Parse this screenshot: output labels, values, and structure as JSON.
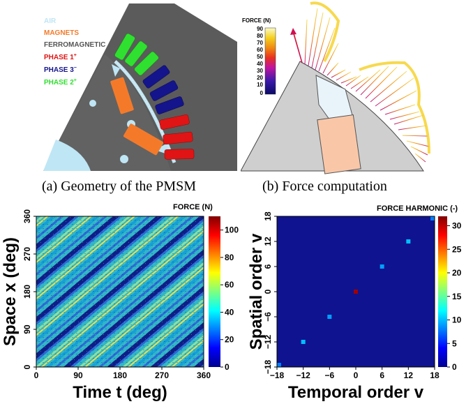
{
  "panel_a": {
    "caption": "(a) Geometry of the PMSM",
    "legend": [
      {
        "label": "AIR",
        "color": "#bfe6f5"
      },
      {
        "label": "MAGNETS",
        "color": "#f47a2a"
      },
      {
        "label": "FERROMAGNETIC",
        "color": "#555555"
      },
      {
        "label": "PHASE 1",
        "sup": "+",
        "color": "#e01414"
      },
      {
        "label": "PHASE 3",
        "sup": "−",
        "color": "#14148c"
      },
      {
        "label": "PHASE 2",
        "sup": "+",
        "color": "#30e030"
      }
    ]
  },
  "panel_b": {
    "caption": "(b) Force computation",
    "colorbar_title": "FORCE (N)",
    "colorbar_ticks": [
      "90",
      "80",
      "70",
      "60",
      "50",
      "40",
      "30",
      "20",
      "10",
      "0"
    ]
  },
  "chart_data": [
    {
      "type": "heatmap",
      "title": "FORCE (N)",
      "xlabel": "Time t (deg)",
      "ylabel": "Space x (deg)",
      "xlim": [
        0,
        360
      ],
      "ylim": [
        0,
        360
      ],
      "x_ticks": [
        "0",
        "90",
        "180",
        "270",
        "360"
      ],
      "y_ticks": [
        "0",
        "90",
        "180",
        "270",
        "360"
      ],
      "colorbar_ticks": [
        "100",
        "80",
        "60",
        "40",
        "20",
        "0"
      ],
      "colorbar_range": [
        0,
        110
      ]
    },
    {
      "type": "heatmap",
      "title": "FORCE HARMONIC (-)",
      "xlabel": "Temporal order v",
      "ylabel": "Spatial order v",
      "xlim": [
        -18,
        18
      ],
      "ylim": [
        -18,
        18
      ],
      "x_ticks": [
        "−18",
        "−12",
        "−6",
        "0",
        "6",
        "12",
        "18"
      ],
      "y_ticks": [
        "−18",
        "−12",
        "−6",
        "0",
        "6",
        "12",
        "18"
      ],
      "colorbar_ticks": [
        "30",
        "25",
        "20",
        "15",
        "10",
        "5",
        "0"
      ],
      "colorbar_range": [
        0,
        32
      ],
      "cells": [
        {
          "x": 0,
          "y": 0,
          "value": 31
        },
        {
          "x": 6,
          "y": 6,
          "value": 9
        },
        {
          "x": -6,
          "y": -6,
          "value": 9
        },
        {
          "x": 12,
          "y": 12,
          "value": 10
        },
        {
          "x": -12,
          "y": -12,
          "value": 10
        },
        {
          "x": 18,
          "y": 18,
          "value": 8
        },
        {
          "x": -18,
          "y": -18,
          "value": 8
        }
      ]
    }
  ]
}
